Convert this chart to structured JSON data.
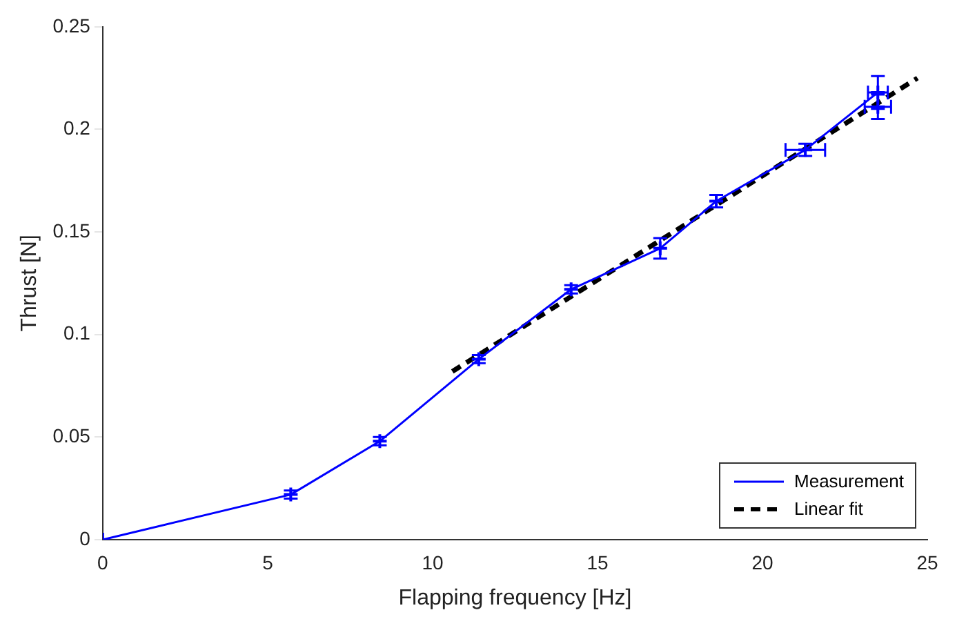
{
  "chart_data": {
    "type": "line",
    "xlabel": "Flapping frequency [Hz]",
    "ylabel": "Thrust [N]",
    "xlim": [
      0,
      25
    ],
    "xticks": [
      0,
      5,
      10,
      15,
      20,
      25
    ],
    "ylim": [
      0,
      0.25
    ],
    "yticks": [
      0,
      0.05,
      0.1,
      0.15,
      0.2,
      0.25
    ],
    "grid": false,
    "legend": "bottom right",
    "series": [
      {
        "name": "Measurement",
        "color": "#0000ff",
        "marker": "cross",
        "line_style": "solid",
        "x": [
          0,
          5.7,
          8.4,
          11.4,
          14.2,
          16.9,
          18.6,
          21.3,
          23.5,
          23.5
        ],
        "values": [
          0,
          0.022,
          0.048,
          0.088,
          0.122,
          0.142,
          0.165,
          0.19,
          0.218,
          0.211
        ],
        "errors": [
          null,
          0.002,
          0.002,
          0.002,
          0.002,
          0.005,
          0.003,
          0.003,
          0.008,
          0.006
        ],
        "xerrors": [
          null,
          null,
          null,
          null,
          null,
          null,
          null,
          0.6,
          0.3,
          0.4
        ]
      },
      {
        "name": "Linear fit",
        "color": "#000000",
        "type": "line",
        "marker": "none",
        "line_style": "dashed",
        "x": [
          10.6,
          24.7
        ],
        "values": [
          0.082,
          0.225
        ]
      }
    ]
  }
}
